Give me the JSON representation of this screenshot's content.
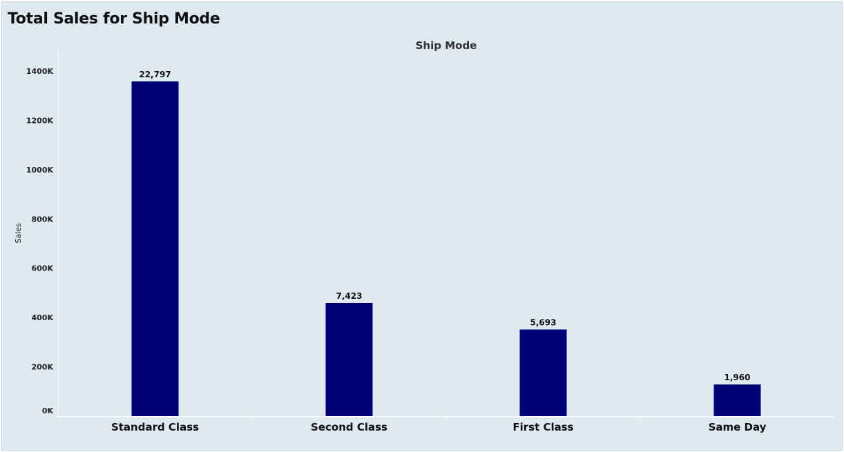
{
  "page": {
    "title": "Total Sales for Ship Mode"
  },
  "chart_data": {
    "type": "bar",
    "title": "Total Sales for Ship Mode",
    "column_header": "Ship Mode",
    "xlabel": "",
    "ylabel": "Sales",
    "categories": [
      "Standard Class",
      "Second Class",
      "First Class",
      "Same Day"
    ],
    "values": [
      1358216,
      459194,
      351428,
      128363
    ],
    "data_labels": [
      "22,797",
      "7,423",
      "5,693",
      "1,960"
    ],
    "ylim": [
      0,
      1400000
    ],
    "yticks": [
      0,
      200000,
      400000,
      600000,
      800000,
      1000000,
      1200000,
      1400000
    ],
    "ytick_labels": [
      "0K",
      "200K",
      "400K",
      "600K",
      "800K",
      "1000K",
      "1200K",
      "1400K"
    ],
    "grid": false,
    "bar_color": "#000077",
    "background_color": "#dee9f0"
  }
}
